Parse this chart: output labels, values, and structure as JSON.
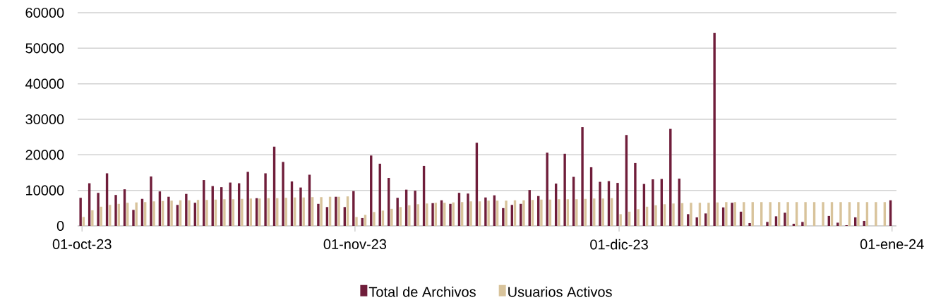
{
  "chart_data": {
    "type": "bar",
    "x": [
      "2023-10-01",
      "2023-10-02",
      "2023-10-03",
      "2023-10-04",
      "2023-10-05",
      "2023-10-06",
      "2023-10-07",
      "2023-10-08",
      "2023-10-09",
      "2023-10-10",
      "2023-10-11",
      "2023-10-12",
      "2023-10-13",
      "2023-10-14",
      "2023-10-15",
      "2023-10-16",
      "2023-10-17",
      "2023-10-18",
      "2023-10-19",
      "2023-10-20",
      "2023-10-21",
      "2023-10-22",
      "2023-10-23",
      "2023-10-24",
      "2023-10-25",
      "2023-10-26",
      "2023-10-27",
      "2023-10-28",
      "2023-10-29",
      "2023-10-30",
      "2023-10-31",
      "2023-11-01",
      "2023-11-02",
      "2023-11-03",
      "2023-11-04",
      "2023-11-05",
      "2023-11-06",
      "2023-11-07",
      "2023-11-08",
      "2023-11-09",
      "2023-11-10",
      "2023-11-11",
      "2023-11-12",
      "2023-11-13",
      "2023-11-14",
      "2023-11-15",
      "2023-11-16",
      "2023-11-17",
      "2023-11-18",
      "2023-11-19",
      "2023-11-20",
      "2023-11-21",
      "2023-11-22",
      "2023-11-23",
      "2023-11-24",
      "2023-11-25",
      "2023-11-26",
      "2023-11-27",
      "2023-11-28",
      "2023-11-29",
      "2023-11-30",
      "2023-12-01",
      "2023-12-02",
      "2023-12-03",
      "2023-12-04",
      "2023-12-05",
      "2023-12-06",
      "2023-12-07",
      "2023-12-08",
      "2023-12-09",
      "2023-12-10",
      "2023-12-11",
      "2023-12-12",
      "2023-12-13",
      "2023-12-14",
      "2023-12-15",
      "2023-12-16",
      "2023-12-17",
      "2023-12-18",
      "2023-12-19",
      "2023-12-20",
      "2023-12-21",
      "2023-12-22",
      "2023-12-23",
      "2023-12-24",
      "2023-12-25",
      "2023-12-26",
      "2023-12-27",
      "2023-12-28",
      "2023-12-29",
      "2023-12-30",
      "2023-12-31",
      "2024-01-01"
    ],
    "series": [
      {
        "name": "Total de Archivos",
        "color": "#6f1d3a",
        "values": [
          7900,
          12000,
          9300,
          14800,
          8700,
          10300,
          4500,
          7600,
          13900,
          9700,
          8200,
          5900,
          9000,
          6500,
          12900,
          11200,
          10900,
          12200,
          12000,
          15200,
          7800,
          14800,
          22300,
          18000,
          12500,
          10800,
          14400,
          6200,
          5300,
          8200,
          5300,
          9800,
          2200,
          19800,
          17500,
          13500,
          7900,
          10200,
          9900,
          16900,
          6400,
          7200,
          6200,
          9300,
          9100,
          23400,
          8000,
          8600,
          5000,
          5900,
          6200,
          10100,
          8400,
          20600,
          11900,
          20300,
          13800,
          27800,
          16500,
          12400,
          12600,
          12100,
          25600,
          17700,
          11800,
          13100,
          13200,
          27300,
          13300,
          3300,
          2400,
          3500,
          54300,
          5200,
          6500,
          4000,
          800,
          0,
          1100,
          2700,
          3700,
          600,
          1100,
          0,
          0,
          2800,
          900,
          200,
          2400,
          1400,
          0,
          0,
          7200
        ]
      },
      {
        "name": "Usuarios Activos",
        "color": "#d8c39b",
        "values": [
          2500,
          4400,
          5400,
          5900,
          6200,
          6500,
          6600,
          6700,
          6900,
          7000,
          7100,
          7200,
          7200,
          7300,
          7300,
          7400,
          7500,
          7500,
          7600,
          7700,
          7700,
          7800,
          7800,
          7900,
          8000,
          8000,
          8100,
          8100,
          8200,
          8200,
          8300,
          2500,
          3100,
          3900,
          4300,
          4800,
          5300,
          5800,
          6100,
          6300,
          6500,
          6500,
          6600,
          6700,
          6900,
          6900,
          7100,
          7100,
          7100,
          7200,
          7200,
          7300,
          7400,
          7400,
          7500,
          7500,
          7500,
          7600,
          7700,
          7700,
          7800,
          3300,
          4000,
          4700,
          5400,
          5800,
          6100,
          6300,
          6400,
          6500,
          6500,
          6500,
          6600,
          6700,
          6700,
          6700,
          6700,
          6700,
          6700,
          6700,
          6700,
          6700,
          6700,
          6700,
          6700,
          6700,
          6700,
          6700,
          6700,
          6700,
          6700,
          6700,
          null
        ]
      }
    ],
    "xlim": [
      "2023-09-30T12:00",
      "2024-01-01T12:00"
    ],
    "xticks": [
      {
        "value": "2023-10-01",
        "label": "01-oct-23"
      },
      {
        "value": "2023-11-01",
        "label": "01-nov-23"
      },
      {
        "value": "2023-12-01",
        "label": "01-dic-23"
      },
      {
        "value": "2024-01-01",
        "label": "01-ene-24"
      }
    ],
    "ylim": [
      0,
      60000
    ],
    "yticks": [
      0,
      10000,
      20000,
      30000,
      40000,
      50000,
      60000
    ],
    "grid": "y",
    "legend": "bottom"
  }
}
